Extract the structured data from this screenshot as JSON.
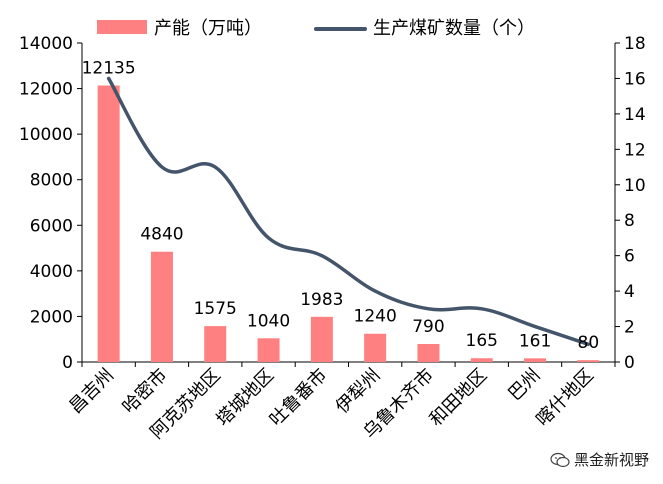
{
  "chart_data": {
    "type": "bar+line",
    "categories": [
      "昌吉州",
      "哈密市",
      "阿克苏地区",
      "塔城地区",
      "吐鲁番市",
      "伊犁州",
      "乌鲁木齐市",
      "和田地区",
      "巴州",
      "喀什地区"
    ],
    "series": [
      {
        "name": "产能（万吨）",
        "type": "bar",
        "axis": "left",
        "color": "#ff8080",
        "values": [
          12135,
          4840,
          1575,
          1040,
          1983,
          1240,
          790,
          165,
          161,
          80
        ],
        "labels": [
          "12135",
          "4840",
          "1575",
          "1040",
          "1983",
          "1240",
          "790",
          "165",
          "161",
          "80"
        ]
      },
      {
        "name": "生产煤矿数量（个）",
        "type": "line",
        "axis": "right",
        "color": "#44546a",
        "values": [
          16,
          11,
          11,
          7,
          6,
          4,
          3,
          3,
          2,
          1
        ]
      }
    ],
    "y_left": {
      "min": 0,
      "max": 14000,
      "step": 2000,
      "ticks": [
        "0",
        "2000",
        "4000",
        "6000",
        "8000",
        "10000",
        "12000",
        "14000"
      ]
    },
    "y_right": {
      "min": 0,
      "max": 18,
      "step": 2,
      "ticks": [
        "0",
        "2",
        "4",
        "6",
        "8",
        "10",
        "12",
        "14",
        "16",
        "18"
      ]
    },
    "legend_position": "top",
    "grid": false
  },
  "watermark": {
    "text": "黑金新视野",
    "icon": "wechat-icon"
  }
}
